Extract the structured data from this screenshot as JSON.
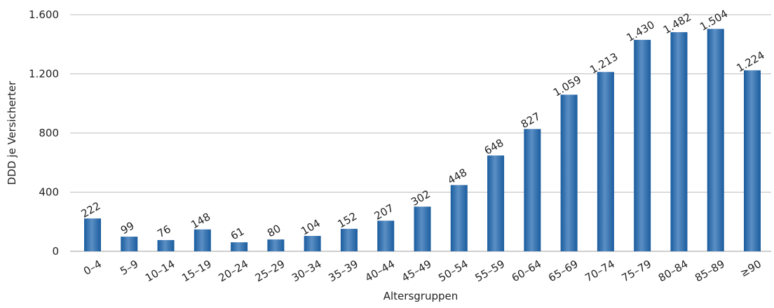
{
  "chart_data": {
    "type": "bar",
    "xlabel": "Altersgruppen",
    "ylabel": "DDD je Versicherter",
    "ylim": [
      0,
      1600
    ],
    "yticks": [
      0,
      400,
      800,
      1200,
      1600
    ],
    "ytick_labels": [
      "0",
      "400",
      "800",
      "1.200",
      "1.600"
    ],
    "grid": true,
    "categories": [
      "0–4",
      "5–9",
      "10–14",
      "15–19",
      "20–24",
      "25–29",
      "30–34",
      "35–39",
      "40–44",
      "45–49",
      "50–54",
      "55–59",
      "60–64",
      "65–69",
      "70–74",
      "75–79",
      "80–84",
      "85–89",
      "≥90"
    ],
    "values": [
      222,
      99,
      76,
      148,
      61,
      80,
      104,
      152,
      207,
      302,
      448,
      648,
      827,
      1059,
      1213,
      1430,
      1482,
      1504,
      1224
    ],
    "value_labels": [
      "222",
      "99",
      "76",
      "148",
      "61",
      "80",
      "104",
      "152",
      "207",
      "302",
      "448",
      "648",
      "827",
      "1.059",
      "1.213",
      "1.430",
      "1.482",
      "1.504",
      "1.224"
    ],
    "bar_color": "#1a5c9e",
    "bar_highlight": "#5b8fc4"
  }
}
